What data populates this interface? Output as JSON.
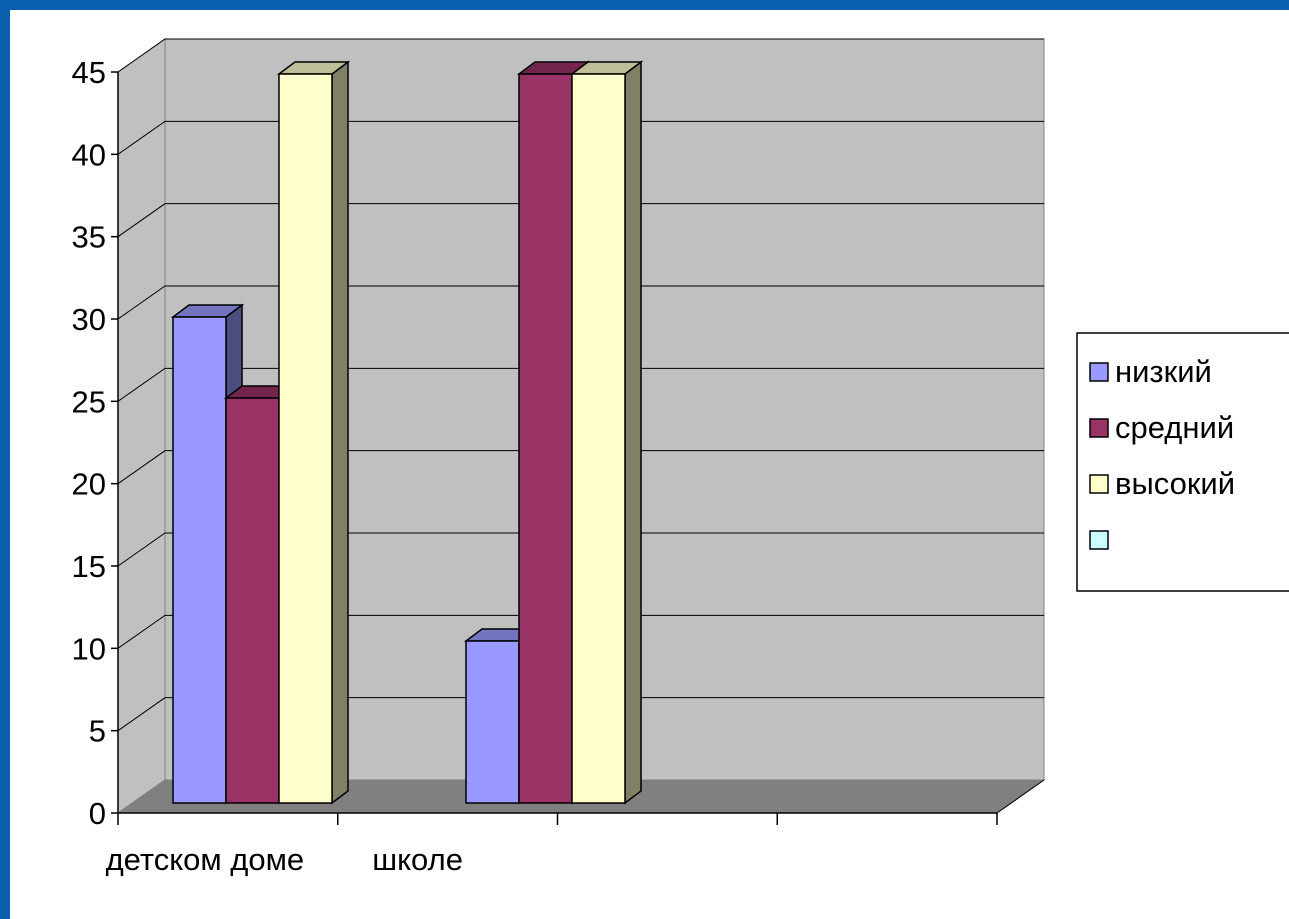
{
  "chart_data": {
    "type": "bar",
    "style": "3d-clustered-column",
    "categories": [
      "детском доме",
      "школе",
      "",
      ""
    ],
    "series": [
      {
        "name": "низкий",
        "values": [
          30,
          10,
          null,
          null
        ],
        "color": "#9999ff"
      },
      {
        "name": "средний",
        "values": [
          25,
          45,
          null,
          null
        ],
        "color": "#993366"
      },
      {
        "name": "высокий",
        "values": [
          45,
          45,
          null,
          null
        ],
        "color": "#ffffcc"
      },
      {
        "name": "",
        "values": [
          null,
          null,
          null,
          null
        ],
        "color": "#ccffff"
      }
    ],
    "y_ticks": [
      "0",
      "5",
      "10",
      "15",
      "20",
      "25",
      "30",
      "35",
      "40",
      "45"
    ],
    "ylim": [
      0,
      45
    ],
    "grid": true,
    "legend_position": "right",
    "colors": {
      "frame_border": "#0b5fb0",
      "wall": "#c0c0c0",
      "floor": "#808080",
      "gridline": "#000000"
    }
  }
}
